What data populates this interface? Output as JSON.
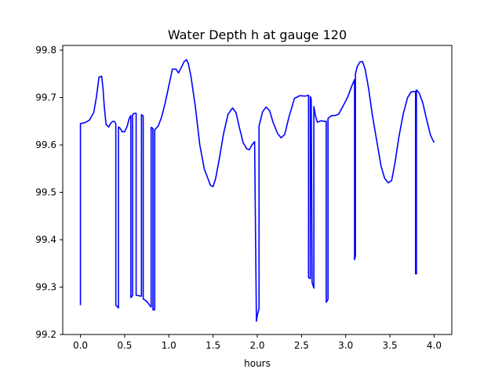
{
  "chart_data": {
    "type": "line",
    "title": "Water Depth h at gauge 120",
    "xlabel": "hours",
    "ylabel": "",
    "xlim": [
      -0.2,
      4.2
    ],
    "ylim": [
      99.2,
      99.81
    ],
    "x_ticks": [
      0.0,
      0.5,
      1.0,
      1.5,
      2.0,
      2.5,
      3.0,
      3.5,
      4.0
    ],
    "x_tick_labels": [
      "0.0",
      "0.5",
      "1.0",
      "1.5",
      "2.0",
      "2.5",
      "3.0",
      "3.5",
      "4.0"
    ],
    "y_ticks": [
      99.2,
      99.3,
      99.4,
      99.5,
      99.6,
      99.7,
      99.8
    ],
    "y_tick_labels": [
      "99.2",
      "99.3",
      "99.4",
      "99.5",
      "99.6",
      "99.7",
      "99.8"
    ],
    "grid": false,
    "series": [
      {
        "name": "",
        "color": "#0000ff",
        "x": [
          0.0,
          0.0,
          0.05,
          0.1,
          0.15,
          0.18,
          0.21,
          0.24,
          0.255,
          0.27,
          0.29,
          0.32,
          0.34,
          0.36,
          0.38,
          0.4,
          0.4,
          0.43,
          0.43,
          0.45,
          0.47,
          0.5,
          0.53,
          0.55,
          0.57,
          0.57,
          0.59,
          0.59,
          0.61,
          0.61,
          0.63,
          0.63,
          0.68,
          0.69,
          0.69,
          0.71,
          0.71,
          0.75,
          0.79,
          0.8,
          0.8,
          0.82,
          0.82,
          0.84,
          0.84,
          0.88,
          0.92,
          0.96,
          1.0,
          1.04,
          1.08,
          1.11,
          1.14,
          1.17,
          1.2,
          1.22,
          1.25,
          1.3,
          1.35,
          1.4,
          1.44,
          1.47,
          1.5,
          1.53,
          1.57,
          1.62,
          1.67,
          1.72,
          1.76,
          1.8,
          1.84,
          1.88,
          1.91,
          1.94,
          1.97,
          1.99,
          1.99,
          2.0,
          2.02,
          2.02,
          2.06,
          2.1,
          2.14,
          2.18,
          2.23,
          2.27,
          2.31,
          2.36,
          2.42,
          2.48,
          2.54,
          2.58,
          2.58,
          2.6,
          2.6,
          2.61,
          2.62,
          2.64,
          2.64,
          2.66,
          2.68,
          2.72,
          2.76,
          2.78,
          2.78,
          2.8,
          2.8,
          2.84,
          2.88,
          2.92,
          2.97,
          3.02,
          3.07,
          3.1,
          3.1,
          3.11,
          3.11,
          3.13,
          3.16,
          3.19,
          3.22,
          3.26,
          3.3,
          3.35,
          3.4,
          3.44,
          3.48,
          3.52,
          3.56,
          3.6,
          3.65,
          3.7,
          3.74,
          3.79,
          3.79,
          3.8,
          3.8,
          3.83,
          3.87,
          3.92,
          3.96,
          4.0
        ],
        "y": [
          99.262,
          99.645,
          99.647,
          99.652,
          99.668,
          99.7,
          99.743,
          99.745,
          99.72,
          99.68,
          99.643,
          99.638,
          99.645,
          99.649,
          99.65,
          99.645,
          99.262,
          99.256,
          99.638,
          99.635,
          99.628,
          99.628,
          99.64,
          99.655,
          99.662,
          99.278,
          99.282,
          99.664,
          99.667,
          99.667,
          99.667,
          99.283,
          99.281,
          99.281,
          99.664,
          99.661,
          99.275,
          99.27,
          99.26,
          99.258,
          99.637,
          99.635,
          99.252,
          99.252,
          99.632,
          99.64,
          99.66,
          99.69,
          99.725,
          99.76,
          99.76,
          99.752,
          99.763,
          99.775,
          99.78,
          99.772,
          99.745,
          99.68,
          99.6,
          99.55,
          99.53,
          99.515,
          99.512,
          99.53,
          99.57,
          99.625,
          99.665,
          99.678,
          99.668,
          99.635,
          99.605,
          99.592,
          99.59,
          99.6,
          99.607,
          99.232,
          99.228,
          99.24,
          99.255,
          99.64,
          99.67,
          99.68,
          99.672,
          99.647,
          99.624,
          99.615,
          99.622,
          99.66,
          99.698,
          99.704,
          99.703,
          99.705,
          99.32,
          99.318,
          99.702,
          99.697,
          99.31,
          99.298,
          99.681,
          99.66,
          99.648,
          99.651,
          99.65,
          99.65,
          99.268,
          99.274,
          99.656,
          99.662,
          99.662,
          99.665,
          99.682,
          99.7,
          99.725,
          99.738,
          99.358,
          99.366,
          99.75,
          99.765,
          99.775,
          99.776,
          99.76,
          99.718,
          99.665,
          99.61,
          99.555,
          99.53,
          99.52,
          99.525,
          99.565,
          99.615,
          99.665,
          99.7,
          99.712,
          99.713,
          99.328,
          99.328,
          99.716,
          99.71,
          99.69,
          99.65,
          99.62,
          99.605
        ]
      }
    ]
  }
}
